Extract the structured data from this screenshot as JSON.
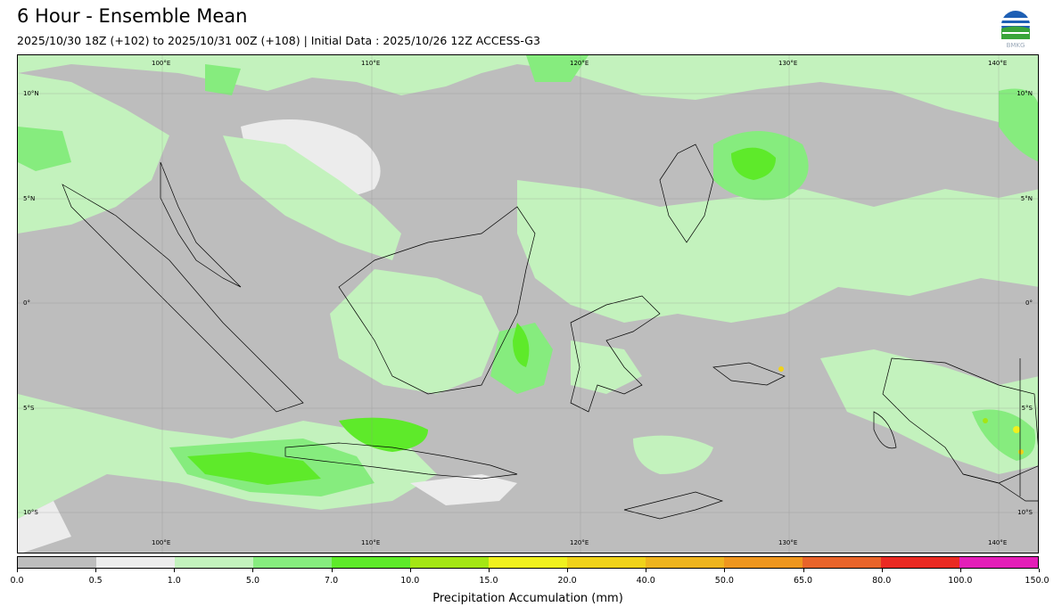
{
  "title": "6 Hour - Ensemble Mean",
  "subtitle": "2025/10/30 18Z (+102) to 2025/10/31 00Z (+108) | Initial Data : 2025/10/26 12Z ACCESS-G3",
  "logo": {
    "icon": "bmkg-logo",
    "text": "BMKG"
  },
  "map": {
    "lon_labels": [
      "100°E",
      "110°E",
      "120°E",
      "130°E",
      "140°E"
    ],
    "lat_labels": [
      "10°N",
      "5°N",
      "0°",
      "5°S",
      "10°S"
    ]
  },
  "colorbar": {
    "label": "Precipitation Accumulation (mm)",
    "ticks": [
      "0.0",
      "0.5",
      "1.0",
      "5.0",
      "7.0",
      "10.0",
      "15.0",
      "20.0",
      "40.0",
      "50.0",
      "65.0",
      "80.0",
      "100.0",
      "150.0"
    ],
    "colors": [
      "#bdbdbd",
      "#ececec",
      "#c3f2bd",
      "#86ec7e",
      "#5eea2a",
      "#a4e614",
      "#f0f01e",
      "#f0d21a",
      "#eeb41e",
      "#ee961e",
      "#e8642a",
      "#ea2a22",
      "#e41eb8"
    ]
  }
}
